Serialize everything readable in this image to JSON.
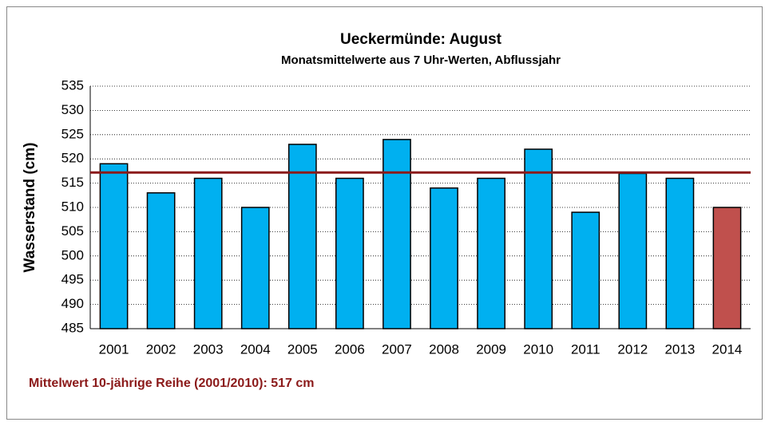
{
  "chart_data": {
    "type": "bar",
    "title": "Ueckermünde: August",
    "subtitle": "Monatsmittelwerte aus 7 Uhr-Werten, Abflussjahr",
    "y_label": "Wasserstand (cm)",
    "categories": [
      "2001",
      "2002",
      "2003",
      "2004",
      "2005",
      "2006",
      "2007",
      "2008",
      "2009",
      "2010",
      "2011",
      "2012",
      "2013",
      "2014"
    ],
    "values": [
      519,
      513,
      516,
      510,
      523,
      516,
      524,
      514,
      516,
      522,
      509,
      517,
      516,
      510
    ],
    "colors": [
      "#00b0f0",
      "#00b0f0",
      "#00b0f0",
      "#00b0f0",
      "#00b0f0",
      "#00b0f0",
      "#00b0f0",
      "#00b0f0",
      "#00b0f0",
      "#00b0f0",
      "#00b0f0",
      "#00b0f0",
      "#00b0f0",
      "#c0504d"
    ],
    "ylim": [
      485,
      535
    ],
    "yticks": [
      485,
      490,
      495,
      500,
      505,
      510,
      515,
      520,
      525,
      530,
      535
    ],
    "grid": true,
    "reference_line": {
      "value": 517.2,
      "color": "#8b1a1a"
    },
    "annotation": "Mittelwert 10-jährige Reihe (2001/2010): 517 cm"
  }
}
